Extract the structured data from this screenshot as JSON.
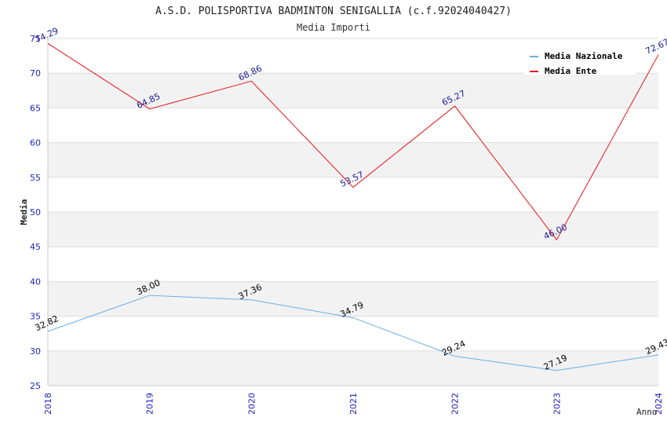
{
  "chart_data": {
    "type": "line",
    "title": "A.S.D. POLISPORTIVA BADMINTON SENIGALLIA (c.f.92024040427)",
    "subtitle": "Media Importi",
    "xlabel": "Anno",
    "ylabel": "Media",
    "categories": [
      "2018",
      "2019",
      "2020",
      "2021",
      "2022",
      "2023",
      "2024"
    ],
    "ylim": [
      25,
      75
    ],
    "yticks": [
      25,
      30,
      35,
      40,
      45,
      50,
      55,
      60,
      65,
      70,
      75
    ],
    "grid": true,
    "legend_position": "top-right",
    "series": [
      {
        "name": "Media Nazionale",
        "color": "#6aaee8",
        "label_color": "#000000",
        "values": [
          32.82,
          38.0,
          37.36,
          34.79,
          29.24,
          27.19,
          29.43
        ],
        "labels": [
          "32.82",
          "38.00",
          "37.36",
          "34.79",
          "29.24",
          "27.19",
          "29.43"
        ]
      },
      {
        "name": "Media Ente",
        "color": "#e8141c",
        "label_color": "#1a1a99",
        "values": [
          74.29,
          64.85,
          68.86,
          53.57,
          65.27,
          46.0,
          72.67
        ],
        "labels": [
          "74.29",
          "64.85",
          "68.86",
          "53.57",
          "65.27",
          "46.00",
          "72.67"
        ]
      }
    ]
  },
  "colors": {
    "axis_label": "#1f1fbf",
    "band": "#f2f2f2",
    "gridline": "#dddddd"
  }
}
